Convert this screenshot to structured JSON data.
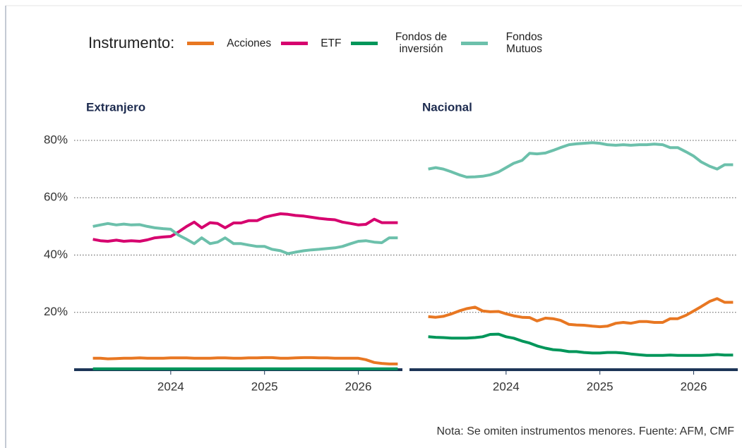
{
  "legend": {
    "title": "Instrumento:"
  },
  "note": "Nota: Se omiten instrumentos menores. Fuente: AFM, CMF",
  "chart_data": [
    {
      "type": "line",
      "title": "Extranjero",
      "x": [
        2023.17,
        2023.25,
        2023.33,
        2023.42,
        2023.5,
        2023.58,
        2023.67,
        2023.75,
        2023.83,
        2023.92,
        2024,
        2024.08,
        2024.17,
        2024.25,
        2024.33,
        2024.42,
        2024.5,
        2024.58,
        2024.67,
        2024.75,
        2024.83,
        2024.92,
        2025,
        2025.08,
        2025.17,
        2025.25,
        2025.33,
        2025.42,
        2025.5,
        2025.58,
        2025.67,
        2025.75,
        2025.83,
        2025.92,
        2026,
        2026.08,
        2026.17,
        2026.25,
        2026.33,
        2026.42
      ],
      "xlim": [
        2022.97,
        2026.47
      ],
      "xticks": [
        2024,
        2025,
        2026
      ],
      "ylim": [
        0,
        80
      ],
      "yticks": [
        {
          "value": 20,
          "label": "20%"
        },
        {
          "value": 40,
          "label": "40%"
        },
        {
          "value": 60,
          "label": "60%"
        },
        {
          "value": 80,
          "label": "80%"
        }
      ],
      "grid": true,
      "series": [
        {
          "name": "Acciones",
          "color": "#e87722",
          "values": [
            4,
            4,
            3.8,
            3.9,
            4,
            4,
            4.1,
            4,
            4,
            4,
            4.1,
            4.1,
            4.1,
            4,
            4,
            4,
            4.1,
            4.1,
            4,
            4,
            4.1,
            4.1,
            4.2,
            4.2,
            4,
            4,
            4.1,
            4.2,
            4.2,
            4.1,
            4.1,
            4,
            4,
            4,
            4,
            3.5,
            2.5,
            2.2,
            2,
            2
          ]
        },
        {
          "name": "ETF",
          "color": "#d6006e",
          "values": [
            45.5,
            45,
            44.8,
            45.2,
            44.8,
            45,
            44.8,
            45.3,
            46,
            46.3,
            46.5,
            48,
            50,
            51.5,
            49.5,
            51.3,
            51,
            49.5,
            51.2,
            51.2,
            52,
            52,
            53.2,
            53.8,
            54.4,
            54.2,
            53.8,
            53.6,
            53.2,
            52.8,
            52.5,
            52.3,
            51.5,
            51,
            50.5,
            50.7,
            52.5,
            51.3,
            51.3,
            51.3
          ]
        },
        {
          "name": "Fondos de inversión",
          "color": "#00965a",
          "values": [
            0.3,
            0.3,
            0.3,
            0.3,
            0.3,
            0.3,
            0.3,
            0.3,
            0.3,
            0.3,
            0.3,
            0.3,
            0.3,
            0.3,
            0.3,
            0.3,
            0.3,
            0.3,
            0.3,
            0.3,
            0.3,
            0.3,
            0.3,
            0.3,
            0.3,
            0.3,
            0.3,
            0.3,
            0.3,
            0.3,
            0.3,
            0.3,
            0.3,
            0.3,
            0.3,
            0.3,
            0.3,
            0.3,
            0.3,
            0.3
          ]
        },
        {
          "name": "Fondos Mutuos",
          "color": "#6cc0ab",
          "values": [
            50,
            50.5,
            51,
            50.5,
            50.8,
            50.5,
            50.6,
            50,
            49.5,
            49.2,
            49,
            47,
            45.5,
            44,
            46,
            44,
            44.5,
            46,
            44,
            44,
            43.5,
            43,
            43,
            42,
            41.5,
            40.5,
            41,
            41.5,
            41.8,
            42,
            42.3,
            42.5,
            43,
            44,
            44.8,
            45,
            44.5,
            44.3,
            46,
            46
          ]
        }
      ]
    },
    {
      "type": "line",
      "title": "Nacional",
      "x": [
        2023.17,
        2023.25,
        2023.33,
        2023.42,
        2023.5,
        2023.58,
        2023.67,
        2023.75,
        2023.83,
        2023.92,
        2024,
        2024.08,
        2024.17,
        2024.25,
        2024.33,
        2024.42,
        2024.5,
        2024.58,
        2024.67,
        2024.75,
        2024.83,
        2024.92,
        2025,
        2025.08,
        2025.17,
        2025.25,
        2025.33,
        2025.42,
        2025.5,
        2025.58,
        2025.67,
        2025.75,
        2025.83,
        2025.92,
        2026,
        2026.08,
        2026.17,
        2026.25,
        2026.33,
        2026.42
      ],
      "xlim": [
        2022.97,
        2026.47
      ],
      "xticks": [
        2024,
        2025,
        2026
      ],
      "ylim": [
        0,
        80
      ],
      "series": [
        {
          "color": "#e87722",
          "values": [
            18.5,
            18.3,
            18.6,
            19.5,
            20.5,
            21.3,
            21.8,
            20.5,
            20.2,
            20.3,
            19.5,
            18.8,
            18.3,
            18.2,
            17,
            18,
            17.8,
            17.2,
            15.8,
            15.6,
            15.5,
            15.2,
            15,
            15.2,
            16.2,
            16.5,
            16.2,
            16.8,
            16.8,
            16.5,
            16.5,
            17.8,
            17.8,
            19,
            20.5,
            22,
            23.8,
            24.8,
            23.5,
            23.5
          ]
        },
        {
          "color": "#00965a",
          "values": [
            11.5,
            11.3,
            11.2,
            11,
            11,
            11,
            11.2,
            11.5,
            12.3,
            12.4,
            11.5,
            11,
            10,
            9.3,
            8.3,
            7.5,
            7,
            6.8,
            6.3,
            6.3,
            6,
            5.8,
            5.8,
            6,
            6,
            5.8,
            5.5,
            5.2,
            5,
            5,
            5,
            5.1,
            5,
            5,
            5,
            5,
            5.1,
            5.3,
            5.1,
            5.1
          ]
        },
        {
          "color": "#6cc0ab",
          "values": [
            70,
            70.5,
            70,
            69,
            68,
            67.2,
            67.3,
            67.5,
            68,
            69,
            70.5,
            72,
            73,
            75.5,
            75.3,
            75.6,
            76.5,
            77.5,
            78.5,
            78.8,
            79,
            79.2,
            79,
            78.5,
            78.3,
            78.5,
            78.3,
            78.5,
            78.5,
            78.7,
            78.5,
            77.5,
            77.5,
            76,
            74.5,
            72.5,
            71,
            70,
            71.5,
            71.5
          ]
        }
      ]
    }
  ]
}
